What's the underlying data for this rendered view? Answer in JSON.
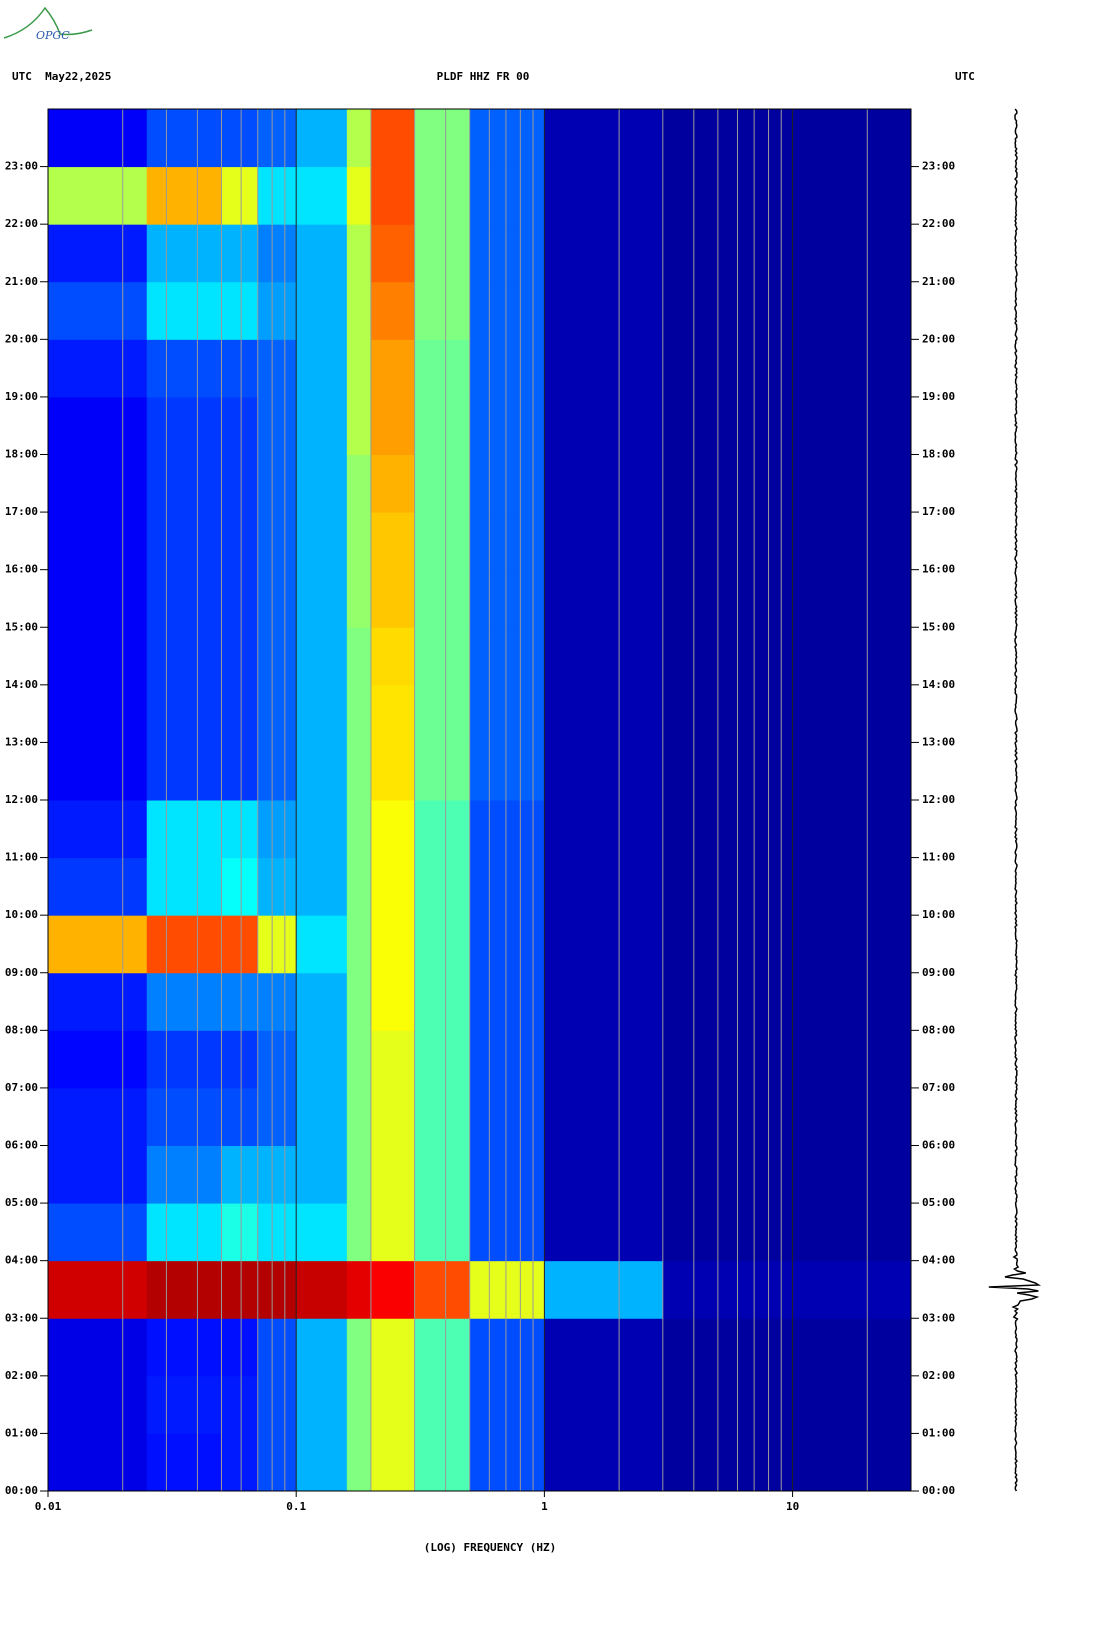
{
  "header": {
    "left": "UTC  May22,2025",
    "center": "PLDF HHZ FR 00",
    "right": "UTC",
    "logo": "OPGC"
  },
  "chart_data": {
    "type": "heatmap",
    "xlabel": "(LOG) FREQUENCY (HZ)",
    "log_x": true,
    "xlim": [
      0.01,
      30
    ],
    "xticks": [
      0.01,
      0.1,
      1,
      10
    ],
    "x_minor_ticks": [
      0.02,
      0.03,
      0.04,
      0.05,
      0.06,
      0.07,
      0.08,
      0.09,
      0.2,
      0.3,
      0.4,
      0.5,
      0.6,
      0.7,
      0.8,
      0.9,
      2,
      3,
      4,
      5,
      6,
      7,
      8,
      9,
      20
    ],
    "ylim": [
      0,
      24
    ],
    "yticks": [
      {
        "value": 0,
        "label": "00:00"
      },
      {
        "value": 1,
        "label": "01:00"
      },
      {
        "value": 2,
        "label": "02:00"
      },
      {
        "value": 3,
        "label": "03:00"
      },
      {
        "value": 4,
        "label": "04:00"
      },
      {
        "value": 5,
        "label": "05:00"
      },
      {
        "value": 6,
        "label": "06:00"
      },
      {
        "value": 7,
        "label": "07:00"
      },
      {
        "value": 8,
        "label": "08:00"
      },
      {
        "value": 9,
        "label": "09:00"
      },
      {
        "value": 10,
        "label": "10:00"
      },
      {
        "value": 11,
        "label": "11:00"
      },
      {
        "value": 12,
        "label": "12:00"
      },
      {
        "value": 13,
        "label": "13:00"
      },
      {
        "value": 14,
        "label": "14:00"
      },
      {
        "value": 15,
        "label": "15:00"
      },
      {
        "value": 16,
        "label": "16:00"
      },
      {
        "value": 17,
        "label": "17:00"
      },
      {
        "value": 18,
        "label": "18:00"
      },
      {
        "value": 19,
        "label": "19:00"
      },
      {
        "value": 20,
        "label": "20:00"
      },
      {
        "value": 21,
        "label": "21:00"
      },
      {
        "value": 22,
        "label": "22:00"
      },
      {
        "value": 23,
        "label": "23:00"
      }
    ],
    "x_edges": [
      0.01,
      0.025,
      0.05,
      0.07,
      0.1,
      0.16,
      0.2,
      0.3,
      0.5,
      1,
      3,
      30
    ],
    "y_edges": [
      0,
      1,
      2,
      3,
      4,
      5,
      6,
      7,
      8,
      9,
      10,
      11,
      12,
      13,
      14,
      15,
      16,
      17,
      18,
      19,
      20,
      21,
      22,
      23,
      24
    ],
    "z": [
      [
        0.1,
        0.14,
        0.15,
        0.2,
        0.3,
        0.5,
        0.6,
        0.45,
        0.2,
        0.05,
        0.03
      ],
      [
        0.1,
        0.15,
        0.15,
        0.2,
        0.3,
        0.5,
        0.6,
        0.45,
        0.2,
        0.05,
        0.03
      ],
      [
        0.1,
        0.14,
        0.14,
        0.2,
        0.3,
        0.5,
        0.6,
        0.45,
        0.2,
        0.05,
        0.03
      ],
      [
        0.92,
        0.95,
        0.95,
        0.95,
        0.93,
        0.9,
        0.88,
        0.8,
        0.6,
        0.3,
        0.05
      ],
      [
        0.2,
        0.35,
        0.4,
        0.35,
        0.35,
        0.5,
        0.6,
        0.45,
        0.2,
        0.05,
        0.03
      ],
      [
        0.15,
        0.25,
        0.3,
        0.3,
        0.3,
        0.5,
        0.6,
        0.45,
        0.2,
        0.05,
        0.03
      ],
      [
        0.15,
        0.2,
        0.2,
        0.22,
        0.3,
        0.5,
        0.6,
        0.45,
        0.2,
        0.05,
        0.03
      ],
      [
        0.13,
        0.18,
        0.18,
        0.22,
        0.3,
        0.5,
        0.6,
        0.45,
        0.2,
        0.05,
        0.03
      ],
      [
        0.15,
        0.25,
        0.25,
        0.25,
        0.3,
        0.5,
        0.62,
        0.45,
        0.2,
        0.05,
        0.03
      ],
      [
        0.7,
        0.8,
        0.8,
        0.6,
        0.35,
        0.5,
        0.62,
        0.45,
        0.2,
        0.05,
        0.03
      ],
      [
        0.18,
        0.35,
        0.38,
        0.3,
        0.3,
        0.5,
        0.62,
        0.45,
        0.2,
        0.05,
        0.03
      ],
      [
        0.15,
        0.35,
        0.35,
        0.28,
        0.3,
        0.5,
        0.62,
        0.45,
        0.2,
        0.05,
        0.03
      ],
      [
        0.12,
        0.18,
        0.18,
        0.22,
        0.3,
        0.5,
        0.65,
        0.48,
        0.22,
        0.05,
        0.03
      ],
      [
        0.12,
        0.18,
        0.18,
        0.22,
        0.3,
        0.5,
        0.65,
        0.48,
        0.22,
        0.05,
        0.03
      ],
      [
        0.12,
        0.18,
        0.18,
        0.22,
        0.3,
        0.5,
        0.66,
        0.48,
        0.22,
        0.05,
        0.03
      ],
      [
        0.12,
        0.18,
        0.18,
        0.22,
        0.3,
        0.52,
        0.68,
        0.48,
        0.22,
        0.05,
        0.03
      ],
      [
        0.12,
        0.18,
        0.18,
        0.22,
        0.3,
        0.52,
        0.68,
        0.48,
        0.22,
        0.05,
        0.03
      ],
      [
        0.12,
        0.18,
        0.18,
        0.22,
        0.3,
        0.52,
        0.7,
        0.48,
        0.22,
        0.05,
        0.03
      ],
      [
        0.12,
        0.18,
        0.18,
        0.22,
        0.3,
        0.55,
        0.72,
        0.48,
        0.22,
        0.05,
        0.03
      ],
      [
        0.15,
        0.2,
        0.2,
        0.22,
        0.3,
        0.55,
        0.72,
        0.48,
        0.22,
        0.05,
        0.03
      ],
      [
        0.2,
        0.35,
        0.35,
        0.28,
        0.3,
        0.55,
        0.75,
        0.5,
        0.22,
        0.05,
        0.03
      ],
      [
        0.15,
        0.3,
        0.3,
        0.25,
        0.3,
        0.55,
        0.78,
        0.5,
        0.22,
        0.05,
        0.03
      ],
      [
        0.55,
        0.7,
        0.6,
        0.35,
        0.35,
        0.6,
        0.8,
        0.5,
        0.22,
        0.05,
        0.03
      ],
      [
        0.12,
        0.2,
        0.2,
        0.22,
        0.3,
        0.55,
        0.8,
        0.5,
        0.22,
        0.05,
        0.03
      ]
    ]
  }
}
